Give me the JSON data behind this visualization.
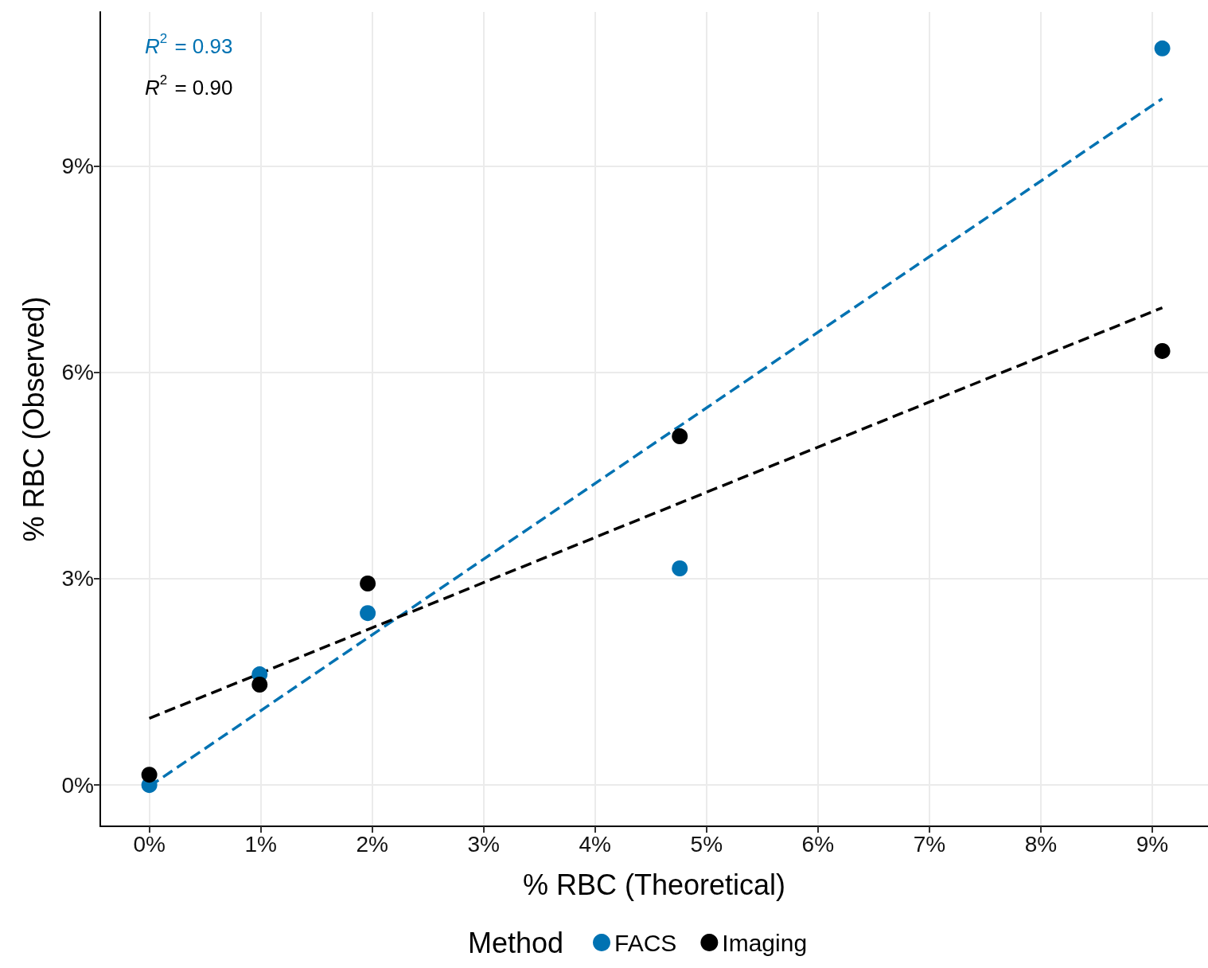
{
  "chart_data": {
    "type": "scatter",
    "xlabel": "% RBC (Theoretical)",
    "ylabel": "% RBC (Observed)",
    "legend_title": "Method",
    "annotations": [
      "R$^{2}$ = 0.93",
      "R$^{2}$ = 0.90"
    ],
    "x": [
      0,
      0.99,
      1.96,
      4.76,
      9.09
    ],
    "series": [
      {
        "name": "FACS",
        "color": "#0072b2",
        "values": [
          0,
          1.61,
          2.5,
          3.15,
          10.71
        ]
      },
      {
        "name": "Imaging",
        "color": "#000000",
        "values": [
          0.15,
          1.46,
          2.93,
          5.07,
          6.31
        ]
      },
      {
        "type": "line",
        "color": "#0072b2",
        "values": [
          -0.02,
          1.07,
          2.14,
          5.22,
          9.98
        ],
        "line_style": "dashed",
        "marker": "none"
      },
      {
        "type": "line",
        "color": "#000000",
        "values": [
          0.97,
          1.62,
          2.26,
          4.1,
          6.94
        ],
        "line_style": "dashed",
        "marker": "none"
      }
    ],
    "xlim": [
      -0.44,
      9.5
    ],
    "ylim": [
      -0.6,
      11.24
    ],
    "xticks": [
      {
        "value": 0,
        "label": "0%"
      },
      {
        "value": 1,
        "label": "1%"
      },
      {
        "value": 2,
        "label": "2%"
      },
      {
        "value": 3,
        "label": "3%"
      },
      {
        "value": 4,
        "label": "4%"
      },
      {
        "value": 5,
        "label": "5%"
      },
      {
        "value": 6,
        "label": "6%"
      },
      {
        "value": 7,
        "label": "7%"
      },
      {
        "value": 8,
        "label": "8%"
      },
      {
        "value": 9,
        "label": "9%"
      }
    ],
    "yticks": [
      {
        "value": 0,
        "label": "0%"
      },
      {
        "value": 3,
        "label": "3%"
      },
      {
        "value": 6,
        "label": "6%"
      },
      {
        "value": 9,
        "label": "9%"
      }
    ],
    "grid": true,
    "legend": "bottom",
    "marker": "circle"
  }
}
